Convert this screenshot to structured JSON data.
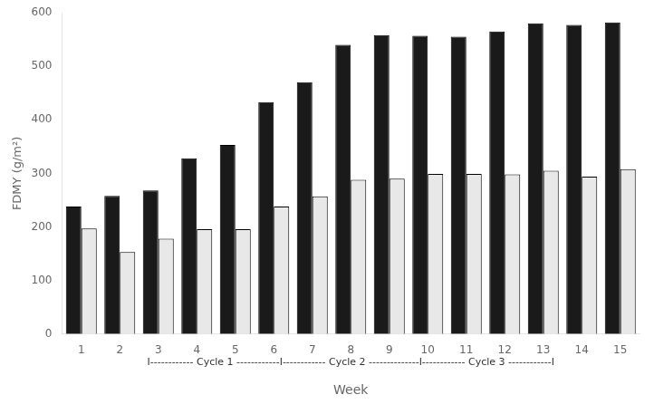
{
  "chart_data": {
    "type": "bar",
    "categories": [
      "1",
      "2",
      "3",
      "4",
      "5",
      "6",
      "7",
      "8",
      "9",
      "10",
      "11",
      "12",
      "13",
      "14",
      "15"
    ],
    "series": [
      {
        "color": "#1a1a1a",
        "values": [
          238,
          258,
          268,
          328,
          353,
          433,
          470,
          540,
          558,
          557,
          555,
          565,
          580,
          577,
          582
        ]
      },
      {
        "color": "#e8e8e8",
        "values": [
          197,
          153,
          178,
          196,
          196,
          238,
          257,
          288,
          290,
          299,
          299,
          298,
          305,
          294,
          308
        ]
      }
    ],
    "xlabel": "Week",
    "ylabel": "FDMY (g/m²)",
    "annotation": "I------------ Cycle 1 ------------I------------ Cycle 2 --------------I------------ Cycle 3 ------------I",
    "ylim": [
      0,
      600
    ],
    "yticks": [
      0,
      100,
      200,
      300,
      400,
      500,
      600
    ],
    "grid": false
  }
}
